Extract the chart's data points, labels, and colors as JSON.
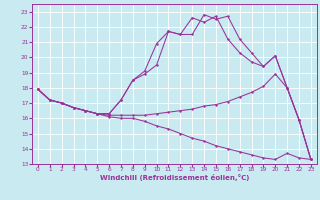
{
  "background_color": "#c8eaf0",
  "grid_color": "#ffffff",
  "line_color": "#993399",
  "xlabel": "Windchill (Refroidissement éolien,°C)",
  "xlim": [
    -0.5,
    23.5
  ],
  "ylim": [
    13,
    23.5
  ],
  "yticks": [
    13,
    14,
    15,
    16,
    17,
    18,
    19,
    20,
    21,
    22,
    23
  ],
  "xticks": [
    0,
    1,
    2,
    3,
    4,
    5,
    6,
    7,
    8,
    9,
    10,
    11,
    12,
    13,
    14,
    15,
    16,
    17,
    18,
    19,
    20,
    21,
    22,
    23
  ],
  "curve1_x": [
    0,
    1,
    2,
    3,
    4,
    5,
    6,
    7,
    8,
    9,
    10,
    11,
    12,
    13,
    14,
    15,
    16,
    17,
    18,
    19,
    20,
    21,
    22,
    23
  ],
  "curve1_y": [
    17.9,
    17.2,
    17.0,
    16.7,
    16.5,
    16.3,
    16.1,
    16.0,
    16.0,
    15.8,
    15.5,
    15.3,
    15.0,
    14.7,
    14.5,
    14.2,
    14.0,
    13.8,
    13.6,
    13.4,
    13.3,
    13.7,
    13.4,
    13.3
  ],
  "curve2_x": [
    0,
    1,
    2,
    3,
    4,
    5,
    6,
    7,
    8,
    9,
    10,
    11,
    12,
    13,
    14,
    15,
    16,
    17,
    18,
    19,
    20,
    21,
    22,
    23
  ],
  "curve2_y": [
    17.9,
    17.2,
    17.0,
    16.7,
    16.5,
    16.3,
    16.2,
    16.2,
    16.2,
    16.2,
    16.3,
    16.4,
    16.5,
    16.6,
    16.8,
    16.9,
    17.1,
    17.4,
    17.7,
    18.1,
    18.9,
    18.0,
    15.9,
    13.3
  ],
  "curve3_x": [
    0,
    1,
    2,
    3,
    4,
    5,
    6,
    7,
    8,
    9,
    10,
    11,
    12,
    13,
    14,
    15,
    16,
    17,
    18,
    19,
    20,
    21,
    22,
    23
  ],
  "curve3_y": [
    17.9,
    17.2,
    17.0,
    16.7,
    16.5,
    16.3,
    16.3,
    17.2,
    18.5,
    19.1,
    20.9,
    21.7,
    21.5,
    22.6,
    22.3,
    22.7,
    21.2,
    20.3,
    19.7,
    19.4,
    20.1,
    18.0,
    15.9,
    13.3
  ],
  "curve4_x": [
    0,
    1,
    2,
    3,
    4,
    5,
    6,
    7,
    8,
    9,
    10,
    11,
    12,
    13,
    14,
    15,
    16,
    17,
    18,
    19,
    20,
    21,
    22,
    23
  ],
  "curve4_y": [
    17.9,
    17.2,
    17.0,
    16.7,
    16.5,
    16.3,
    16.3,
    17.2,
    18.5,
    18.9,
    19.5,
    21.7,
    21.5,
    21.5,
    22.8,
    22.5,
    22.7,
    21.2,
    20.3,
    19.4,
    20.1,
    18.0,
    15.9,
    13.3
  ]
}
